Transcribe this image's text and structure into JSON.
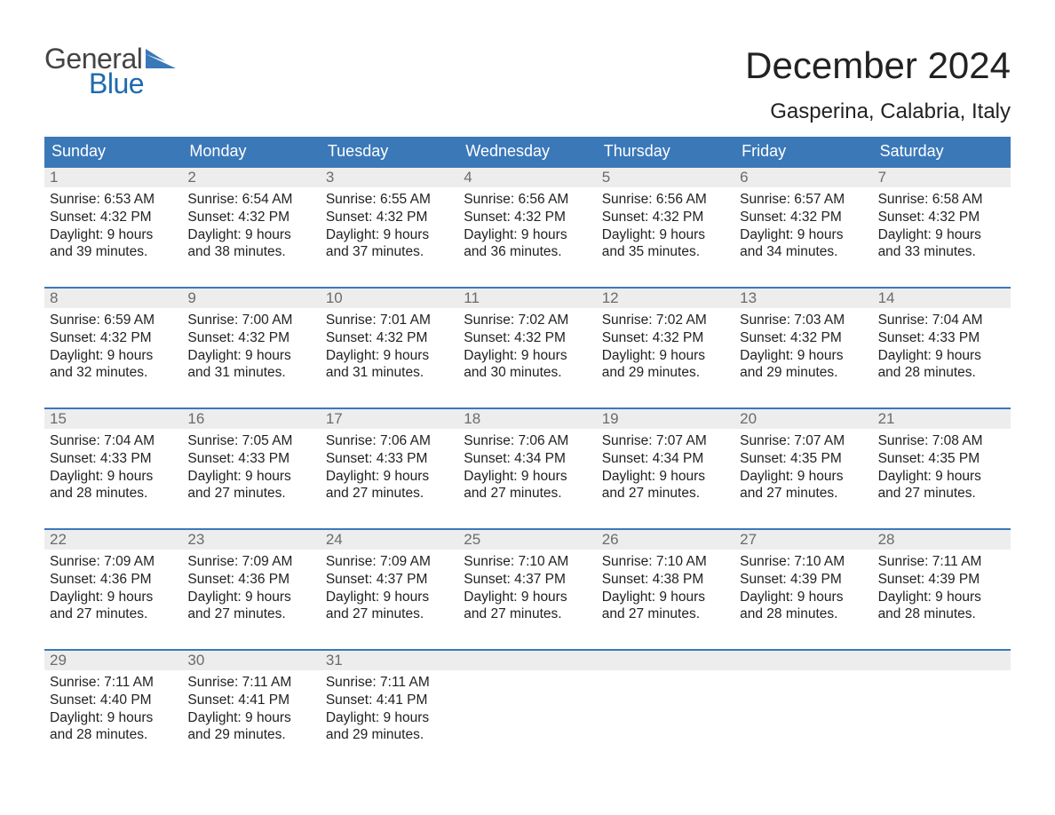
{
  "brand": {
    "top": "General",
    "bottom": "Blue",
    "flag_color": "#3b78b8",
    "top_color": "#444444",
    "bottom_color": "#1e6bb0"
  },
  "title": "December 2024",
  "location": "Gasperina, Calabria, Italy",
  "colors": {
    "header_bg": "#3b78b8",
    "header_text": "#ffffff",
    "daynum_bg": "#ededed",
    "daynum_border_top": "#3b78b8",
    "daynum_text": "#6b6b6b",
    "body_text": "#222222",
    "page_bg": "#ffffff"
  },
  "fonts": {
    "title_size_pt": 32,
    "location_size_pt": 18,
    "dow_size_pt": 14,
    "daynum_size_pt": 13,
    "details_size_pt": 12
  },
  "days_of_week": [
    "Sunday",
    "Monday",
    "Tuesday",
    "Wednesday",
    "Thursday",
    "Friday",
    "Saturday"
  ],
  "weeks": [
    [
      {
        "num": "1",
        "sunrise": "Sunrise: 6:53 AM",
        "sunset": "Sunset: 4:32 PM",
        "daylight1": "Daylight: 9 hours",
        "daylight2": "and 39 minutes."
      },
      {
        "num": "2",
        "sunrise": "Sunrise: 6:54 AM",
        "sunset": "Sunset: 4:32 PM",
        "daylight1": "Daylight: 9 hours",
        "daylight2": "and 38 minutes."
      },
      {
        "num": "3",
        "sunrise": "Sunrise: 6:55 AM",
        "sunset": "Sunset: 4:32 PM",
        "daylight1": "Daylight: 9 hours",
        "daylight2": "and 37 minutes."
      },
      {
        "num": "4",
        "sunrise": "Sunrise: 6:56 AM",
        "sunset": "Sunset: 4:32 PM",
        "daylight1": "Daylight: 9 hours",
        "daylight2": "and 36 minutes."
      },
      {
        "num": "5",
        "sunrise": "Sunrise: 6:56 AM",
        "sunset": "Sunset: 4:32 PM",
        "daylight1": "Daylight: 9 hours",
        "daylight2": "and 35 minutes."
      },
      {
        "num": "6",
        "sunrise": "Sunrise: 6:57 AM",
        "sunset": "Sunset: 4:32 PM",
        "daylight1": "Daylight: 9 hours",
        "daylight2": "and 34 minutes."
      },
      {
        "num": "7",
        "sunrise": "Sunrise: 6:58 AM",
        "sunset": "Sunset: 4:32 PM",
        "daylight1": "Daylight: 9 hours",
        "daylight2": "and 33 minutes."
      }
    ],
    [
      {
        "num": "8",
        "sunrise": "Sunrise: 6:59 AM",
        "sunset": "Sunset: 4:32 PM",
        "daylight1": "Daylight: 9 hours",
        "daylight2": "and 32 minutes."
      },
      {
        "num": "9",
        "sunrise": "Sunrise: 7:00 AM",
        "sunset": "Sunset: 4:32 PM",
        "daylight1": "Daylight: 9 hours",
        "daylight2": "and 31 minutes."
      },
      {
        "num": "10",
        "sunrise": "Sunrise: 7:01 AM",
        "sunset": "Sunset: 4:32 PM",
        "daylight1": "Daylight: 9 hours",
        "daylight2": "and 31 minutes."
      },
      {
        "num": "11",
        "sunrise": "Sunrise: 7:02 AM",
        "sunset": "Sunset: 4:32 PM",
        "daylight1": "Daylight: 9 hours",
        "daylight2": "and 30 minutes."
      },
      {
        "num": "12",
        "sunrise": "Sunrise: 7:02 AM",
        "sunset": "Sunset: 4:32 PM",
        "daylight1": "Daylight: 9 hours",
        "daylight2": "and 29 minutes."
      },
      {
        "num": "13",
        "sunrise": "Sunrise: 7:03 AM",
        "sunset": "Sunset: 4:32 PM",
        "daylight1": "Daylight: 9 hours",
        "daylight2": "and 29 minutes."
      },
      {
        "num": "14",
        "sunrise": "Sunrise: 7:04 AM",
        "sunset": "Sunset: 4:33 PM",
        "daylight1": "Daylight: 9 hours",
        "daylight2": "and 28 minutes."
      }
    ],
    [
      {
        "num": "15",
        "sunrise": "Sunrise: 7:04 AM",
        "sunset": "Sunset: 4:33 PM",
        "daylight1": "Daylight: 9 hours",
        "daylight2": "and 28 minutes."
      },
      {
        "num": "16",
        "sunrise": "Sunrise: 7:05 AM",
        "sunset": "Sunset: 4:33 PM",
        "daylight1": "Daylight: 9 hours",
        "daylight2": "and 27 minutes."
      },
      {
        "num": "17",
        "sunrise": "Sunrise: 7:06 AM",
        "sunset": "Sunset: 4:33 PM",
        "daylight1": "Daylight: 9 hours",
        "daylight2": "and 27 minutes."
      },
      {
        "num": "18",
        "sunrise": "Sunrise: 7:06 AM",
        "sunset": "Sunset: 4:34 PM",
        "daylight1": "Daylight: 9 hours",
        "daylight2": "and 27 minutes."
      },
      {
        "num": "19",
        "sunrise": "Sunrise: 7:07 AM",
        "sunset": "Sunset: 4:34 PM",
        "daylight1": "Daylight: 9 hours",
        "daylight2": "and 27 minutes."
      },
      {
        "num": "20",
        "sunrise": "Sunrise: 7:07 AM",
        "sunset": "Sunset: 4:35 PM",
        "daylight1": "Daylight: 9 hours",
        "daylight2": "and 27 minutes."
      },
      {
        "num": "21",
        "sunrise": "Sunrise: 7:08 AM",
        "sunset": "Sunset: 4:35 PM",
        "daylight1": "Daylight: 9 hours",
        "daylight2": "and 27 minutes."
      }
    ],
    [
      {
        "num": "22",
        "sunrise": "Sunrise: 7:09 AM",
        "sunset": "Sunset: 4:36 PM",
        "daylight1": "Daylight: 9 hours",
        "daylight2": "and 27 minutes."
      },
      {
        "num": "23",
        "sunrise": "Sunrise: 7:09 AM",
        "sunset": "Sunset: 4:36 PM",
        "daylight1": "Daylight: 9 hours",
        "daylight2": "and 27 minutes."
      },
      {
        "num": "24",
        "sunrise": "Sunrise: 7:09 AM",
        "sunset": "Sunset: 4:37 PM",
        "daylight1": "Daylight: 9 hours",
        "daylight2": "and 27 minutes."
      },
      {
        "num": "25",
        "sunrise": "Sunrise: 7:10 AM",
        "sunset": "Sunset: 4:37 PM",
        "daylight1": "Daylight: 9 hours",
        "daylight2": "and 27 minutes."
      },
      {
        "num": "26",
        "sunrise": "Sunrise: 7:10 AM",
        "sunset": "Sunset: 4:38 PM",
        "daylight1": "Daylight: 9 hours",
        "daylight2": "and 27 minutes."
      },
      {
        "num": "27",
        "sunrise": "Sunrise: 7:10 AM",
        "sunset": "Sunset: 4:39 PM",
        "daylight1": "Daylight: 9 hours",
        "daylight2": "and 28 minutes."
      },
      {
        "num": "28",
        "sunrise": "Sunrise: 7:11 AM",
        "sunset": "Sunset: 4:39 PM",
        "daylight1": "Daylight: 9 hours",
        "daylight2": "and 28 minutes."
      }
    ],
    [
      {
        "num": "29",
        "sunrise": "Sunrise: 7:11 AM",
        "sunset": "Sunset: 4:40 PM",
        "daylight1": "Daylight: 9 hours",
        "daylight2": "and 28 minutes."
      },
      {
        "num": "30",
        "sunrise": "Sunrise: 7:11 AM",
        "sunset": "Sunset: 4:41 PM",
        "daylight1": "Daylight: 9 hours",
        "daylight2": "and 29 minutes."
      },
      {
        "num": "31",
        "sunrise": "Sunrise: 7:11 AM",
        "sunset": "Sunset: 4:41 PM",
        "daylight1": "Daylight: 9 hours",
        "daylight2": "and 29 minutes."
      },
      null,
      null,
      null,
      null
    ]
  ]
}
